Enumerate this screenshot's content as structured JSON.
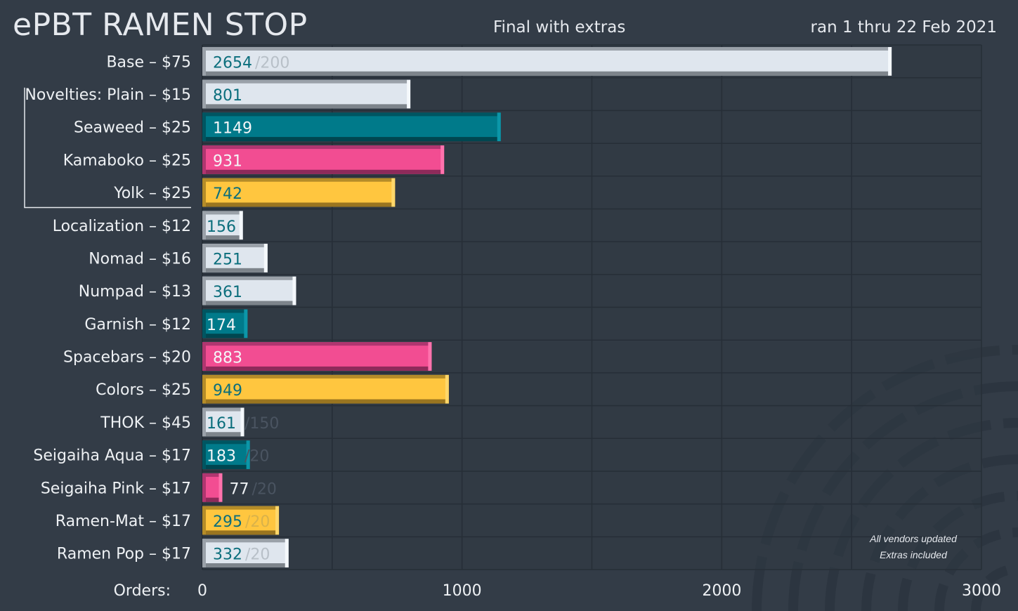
{
  "header": {
    "title": "ePBT RAMEN STOP",
    "subtitle": "Final with extras",
    "date_range": "ran 1 thru 22 Feb 2021"
  },
  "notes": [
    "All vendors updated",
    "Extras included"
  ],
  "colors": {
    "background": "#333c47",
    "white": "#dfe6ee",
    "teal": "#007a8a",
    "pink": "#f24d92",
    "yellow": "#ffc63f",
    "value_text": "#0b6e7c",
    "minimum_text": "#4a5461"
  },
  "chart_data": {
    "type": "bar",
    "orientation": "horizontal",
    "title": "",
    "xlabel": "Orders:",
    "xlim": [
      0,
      3000
    ],
    "xticks": [
      0,
      1000,
      2000,
      3000
    ],
    "grid": true,
    "group_bracket": {
      "label": "Novelties:",
      "members": [
        "Plain – $15",
        "Seaweed – $25",
        "Kamaboko – $25",
        "Yolk – $25"
      ]
    },
    "categories": [
      "Base – $75",
      "Novelties:  Plain – $15",
      "Seaweed – $25",
      "Kamaboko – $25",
      "Yolk – $25",
      "Localization – $12",
      "Nomad – $16",
      "Numpad – $13",
      "Garnish – $12",
      "Spacebars – $20",
      "Colors – $25",
      "THOK – $45",
      "Seigaiha Aqua – $17",
      "Seigaiha Pink – $17",
      "Ramen-Mat – $17",
      "Ramen Pop – $17"
    ],
    "values": [
      2654,
      801,
      1149,
      931,
      742,
      156,
      251,
      361,
      174,
      883,
      949,
      161,
      183,
      77,
      295,
      332
    ],
    "minimums": [
      "/200",
      "",
      "",
      "",
      "",
      "",
      "",
      "",
      "",
      "",
      "",
      "/150",
      "/20",
      "/20",
      "/20",
      "/20"
    ],
    "bar_colors": [
      "white",
      "white",
      "teal",
      "pink",
      "yellow",
      "white",
      "white",
      "white",
      "teal",
      "pink",
      "yellow",
      "white",
      "teal",
      "pink",
      "yellow",
      "white"
    ]
  }
}
